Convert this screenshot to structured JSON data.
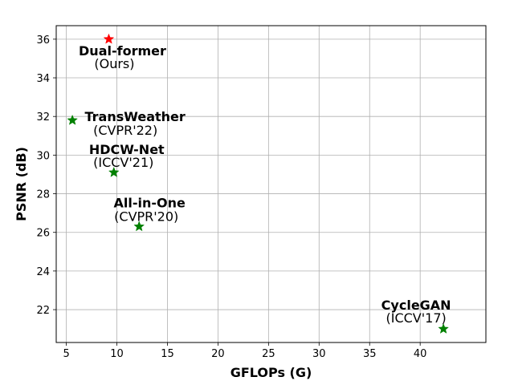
{
  "chart_data": {
    "type": "scatter",
    "title": "",
    "xlabel": "GFLOPs (G)",
    "ylabel": "PSNR (dB)",
    "xlim": [
      4,
      46.5
    ],
    "ylim": [
      20.3,
      36.7
    ],
    "x_ticks": [
      5,
      10,
      15,
      20,
      25,
      30,
      35,
      40
    ],
    "y_ticks": [
      22,
      24,
      26,
      28,
      30,
      32,
      34,
      36
    ],
    "grid": true,
    "marker": "star",
    "points": [
      {
        "name": "Dual-former",
        "venue": "(Ours)",
        "x": 9.2,
        "y": 36.0,
        "color": "#ff0000"
      },
      {
        "name": "TransWeather",
        "venue": "(CVPR'22)",
        "x": 5.6,
        "y": 31.8,
        "color": "#008000"
      },
      {
        "name": "HDCW-Net",
        "venue": "(ICCV'21)",
        "x": 9.7,
        "y": 29.1,
        "color": "#008000"
      },
      {
        "name": "All-in-One",
        "venue": "(CVPR'20)",
        "x": 12.2,
        "y": 26.3,
        "color": "#008000"
      },
      {
        "name": "CycleGAN",
        "venue": "(ICCV'17)",
        "x": 42.3,
        "y": 21.0,
        "color": "#008000"
      }
    ]
  }
}
